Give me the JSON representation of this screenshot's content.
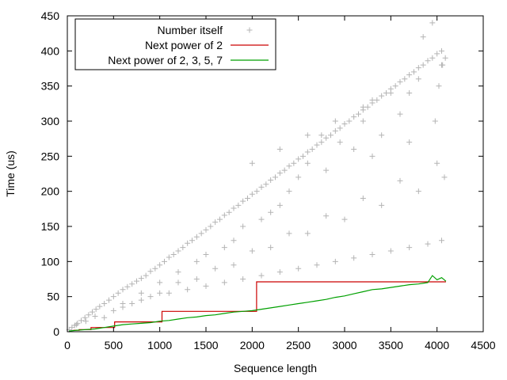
{
  "chart_data": {
    "type": "scatter",
    "xlabel": "Sequence length",
    "ylabel": "Time (us)",
    "xlim": [
      0,
      4500
    ],
    "ylim": [
      0,
      450
    ],
    "xticks": [
      0,
      500,
      1000,
      1500,
      2000,
      2500,
      3000,
      3500,
      4000,
      4500
    ],
    "yticks": [
      0,
      50,
      100,
      150,
      200,
      250,
      300,
      350,
      400,
      450
    ],
    "legend_position": "top-left",
    "series": [
      {
        "name": "Number itself",
        "kind": "scatter",
        "marker": "plus",
        "color": "#b4b4b4",
        "x": [
          20,
          50,
          80,
          110,
          150,
          190,
          230,
          270,
          310,
          350,
          400,
          450,
          500,
          550,
          600,
          650,
          700,
          750,
          800,
          850,
          900,
          950,
          1000,
          1050,
          1100,
          1150,
          1200,
          1250,
          1300,
          1350,
          1400,
          1450,
          1500,
          1550,
          1600,
          1650,
          1700,
          1750,
          1800,
          1850,
          1900,
          1950,
          2000,
          2050,
          2100,
          2150,
          2200,
          2250,
          2300,
          2350,
          2400,
          2450,
          2500,
          2550,
          2600,
          2650,
          2700,
          2750,
          2800,
          2850,
          2900,
          2950,
          3000,
          3050,
          3100,
          3150,
          3200,
          3250,
          3300,
          3350,
          3400,
          3450,
          3500,
          3550,
          3600,
          3650,
          3700,
          3750,
          3800,
          3850,
          3900,
          3950,
          4000,
          4050,
          4090,
          100,
          300,
          500,
          700,
          900,
          1100,
          1300,
          1500,
          1700,
          1900,
          2100,
          2300,
          2500,
          2700,
          2900,
          3100,
          3300,
          3500,
          3700,
          3900,
          4050,
          200,
          600,
          1000,
          1400,
          1800,
          2200,
          2600,
          3000,
          3400,
          3800,
          4080,
          400,
          800,
          1200,
          1600,
          2000,
          2400,
          2800,
          3200,
          3600,
          4000,
          3850,
          3950,
          4060,
          4020,
          3980,
          3700,
          3600,
          3400,
          3300,
          3200,
          3100,
          2950,
          2800,
          2750,
          2600,
          2500,
          2400,
          2300,
          2200,
          2100,
          1900,
          1800,
          1700,
          1500,
          1400,
          1200,
          1000,
          800,
          600,
          2000,
          2300,
          2600,
          2900,
          3200,
          3500,
          3800,
          4050,
          3300,
          3700
        ],
        "y": [
          3,
          6,
          9,
          12,
          16,
          20,
          24,
          28,
          32,
          36,
          40,
          45,
          50,
          55,
          60,
          64,
          68,
          72,
          76,
          80,
          86,
          90,
          95,
          100,
          106,
          110,
          115,
          120,
          126,
          130,
          135,
          140,
          145,
          150,
          156,
          160,
          166,
          170,
          176,
          180,
          186,
          190,
          196,
          200,
          206,
          210,
          216,
          220,
          226,
          230,
          236,
          240,
          246,
          250,
          256,
          260,
          266,
          270,
          276,
          280,
          286,
          290,
          296,
          300,
          306,
          310,
          316,
          320,
          326,
          330,
          336,
          340,
          346,
          350,
          356,
          360,
          366,
          370,
          376,
          380,
          386,
          390,
          396,
          400,
          390,
          10,
          22,
          30,
          40,
          50,
          55,
          60,
          65,
          70,
          75,
          80,
          85,
          90,
          95,
          100,
          105,
          110,
          115,
          120,
          125,
          130,
          15,
          35,
          55,
          75,
          95,
          120,
          140,
          160,
          180,
          200,
          220,
          20,
          45,
          70,
          90,
          115,
          140,
          165,
          190,
          215,
          240,
          420,
          440,
          380,
          350,
          300,
          340,
          310,
          280,
          330,
          300,
          260,
          270,
          230,
          280,
          240,
          220,
          200,
          180,
          170,
          160,
          150,
          130,
          120,
          110,
          100,
          85,
          70,
          55,
          40,
          240,
          260,
          280,
          300,
          320,
          340,
          360,
          380,
          250,
          270
        ]
      },
      {
        "name": "Next power of 2",
        "kind": "step",
        "color": "#cc0000",
        "x": [
          64,
          128,
          128,
          256,
          256,
          512,
          512,
          1024,
          1024,
          2048,
          2048,
          4096
        ],
        "y": [
          2,
          2,
          3,
          3,
          6,
          6,
          14,
          14,
          29,
          29,
          71,
          71
        ]
      },
      {
        "name": "Next power of 2, 3, 5, 7",
        "kind": "line",
        "color": "#00a000",
        "x": [
          20,
          100,
          200,
          300,
          400,
          500,
          600,
          700,
          800,
          900,
          1000,
          1100,
          1200,
          1300,
          1400,
          1500,
          1600,
          1700,
          1800,
          1900,
          2000,
          2100,
          2200,
          2300,
          2400,
          2500,
          2600,
          2700,
          2800,
          2900,
          3000,
          3100,
          3200,
          3300,
          3400,
          3500,
          3600,
          3700,
          3800,
          3900,
          3950,
          4000,
          4050,
          4096
        ],
        "y": [
          1,
          2,
          3,
          4,
          6,
          8,
          10,
          11,
          12,
          13,
          15,
          16,
          18,
          20,
          21,
          23,
          24,
          26,
          28,
          29,
          30,
          32,
          34,
          36,
          38,
          40,
          42,
          44,
          46,
          49,
          51,
          54,
          57,
          60,
          61,
          63,
          65,
          67,
          68,
          70,
          80,
          74,
          77,
          72
        ]
      }
    ]
  }
}
